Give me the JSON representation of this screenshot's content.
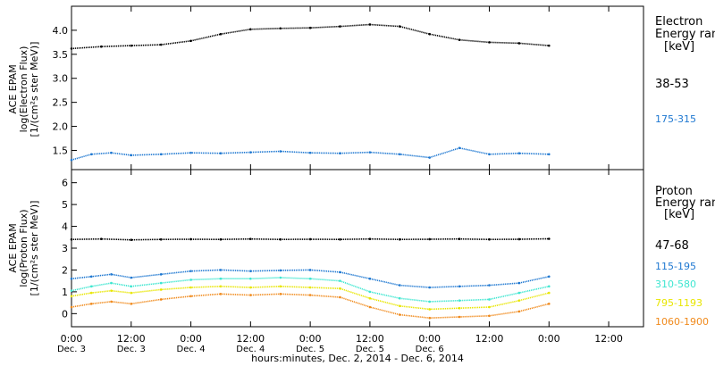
{
  "chart_data": [
    {
      "type": "scatter",
      "panel": "electron",
      "ylabel_lines": [
        "ACE EPAM",
        "log(Electron Flux)",
        "[1/(cm²s ster MeV)]"
      ],
      "ylim": [
        1.1,
        4.5
      ],
      "yticks": [
        1.5,
        2.0,
        2.5,
        3.0,
        3.5,
        4.0
      ],
      "ytick_labels": [
        "1.5",
        "2.0",
        "2.5",
        "3.0",
        "3.5",
        "4.0"
      ],
      "legend": {
        "title1": "Electron",
        "title2": "Energy ran",
        "unit": "[keV]"
      },
      "series": [
        {
          "name": "38-53",
          "color": "#000000",
          "x": [
            0,
            6,
            12,
            18,
            24,
            30,
            36,
            42,
            48,
            54,
            60,
            66,
            72,
            78,
            84,
            90,
            96
          ],
          "values": [
            3.62,
            3.66,
            3.68,
            3.7,
            3.78,
            3.92,
            4.02,
            4.04,
            4.05,
            4.08,
            4.12,
            4.08,
            3.92,
            3.8,
            3.75,
            3.73,
            3.68
          ]
        },
        {
          "name": "175-315",
          "color": "#1f78d1",
          "x": [
            0,
            4,
            8,
            12,
            18,
            24,
            30,
            36,
            42,
            48,
            54,
            60,
            66,
            72,
            78,
            84,
            90,
            96
          ],
          "values": [
            1.3,
            1.42,
            1.45,
            1.4,
            1.42,
            1.45,
            1.44,
            1.46,
            1.48,
            1.45,
            1.44,
            1.46,
            1.42,
            1.35,
            1.55,
            1.42,
            1.44,
            1.42
          ]
        }
      ]
    },
    {
      "type": "scatter",
      "panel": "proton",
      "ylabel_lines": [
        "ACE EPAM",
        "log(Proton Flux)",
        "[1/(cm²s ster MeV)]"
      ],
      "ylim": [
        -0.6,
        6.6
      ],
      "yticks": [
        0,
        1,
        2,
        3,
        4,
        5,
        6
      ],
      "ytick_labels": [
        "0",
        "1",
        "2",
        "3",
        "4",
        "5",
        "6"
      ],
      "legend": {
        "title1": "Proton",
        "title2": "Energy ran",
        "unit": "[keV]"
      },
      "series": [
        {
          "name": "47-68",
          "color": "#000000",
          "x": [
            0,
            6,
            12,
            18,
            24,
            30,
            36,
            42,
            48,
            54,
            60,
            66,
            72,
            78,
            84,
            90,
            96
          ],
          "values": [
            3.4,
            3.42,
            3.38,
            3.4,
            3.41,
            3.4,
            3.42,
            3.4,
            3.41,
            3.4,
            3.42,
            3.4,
            3.41,
            3.42,
            3.4,
            3.41,
            3.43
          ]
        },
        {
          "name": "115-195",
          "color": "#1f78d1",
          "x": [
            0,
            4,
            8,
            12,
            18,
            24,
            30,
            36,
            42,
            48,
            54,
            60,
            66,
            72,
            78,
            84,
            90,
            96
          ],
          "values": [
            1.6,
            1.7,
            1.8,
            1.65,
            1.8,
            1.95,
            2.0,
            1.95,
            1.98,
            2.0,
            1.9,
            1.6,
            1.3,
            1.2,
            1.25,
            1.3,
            1.4,
            1.7
          ]
        },
        {
          "name": "310-580",
          "color": "#3ee6d0",
          "x": [
            0,
            4,
            8,
            12,
            18,
            24,
            30,
            36,
            42,
            48,
            54,
            60,
            66,
            72,
            78,
            84,
            90,
            96
          ],
          "values": [
            1.05,
            1.25,
            1.4,
            1.25,
            1.4,
            1.55,
            1.6,
            1.6,
            1.65,
            1.6,
            1.5,
            1.0,
            0.7,
            0.55,
            0.6,
            0.65,
            0.95,
            1.25
          ]
        },
        {
          "name": "795-1193",
          "color": "#e8e600",
          "x": [
            0,
            4,
            8,
            12,
            18,
            24,
            30,
            36,
            42,
            48,
            54,
            60,
            66,
            72,
            78,
            84,
            90,
            96
          ],
          "values": [
            0.8,
            0.95,
            1.05,
            0.95,
            1.1,
            1.2,
            1.25,
            1.2,
            1.25,
            1.2,
            1.15,
            0.7,
            0.35,
            0.2,
            0.25,
            0.3,
            0.6,
            0.95
          ]
        },
        {
          "name": "1060-1900",
          "color": "#f08a1c",
          "x": [
            0,
            4,
            8,
            12,
            18,
            24,
            30,
            36,
            42,
            48,
            54,
            60,
            66,
            72,
            78,
            84,
            90,
            96
          ],
          "values": [
            0.3,
            0.45,
            0.55,
            0.45,
            0.65,
            0.8,
            0.9,
            0.85,
            0.9,
            0.85,
            0.75,
            0.3,
            -0.05,
            -0.2,
            -0.15,
            -0.1,
            0.1,
            0.45
          ]
        }
      ]
    }
  ],
  "xaxis": {
    "ticks": [
      0,
      12,
      24,
      36,
      48,
      60,
      72,
      84,
      96,
      108
    ],
    "tick_labels_time": [
      "0:00",
      "12:00",
      "0:00",
      "12:00",
      "0:00",
      "12:00",
      "0:00",
      "12:00",
      "0:00",
      "12:00"
    ],
    "tick_labels_date": [
      "Dec. 3",
      "Dec. 3",
      "Dec. 4",
      "Dec. 4",
      "Dec. 5",
      "Dec. 5",
      "Dec. 6",
      "",
      "",
      ""
    ],
    "label": "hours:minutes, Dec.  2, 2014 - Dec. 6, 2014"
  }
}
